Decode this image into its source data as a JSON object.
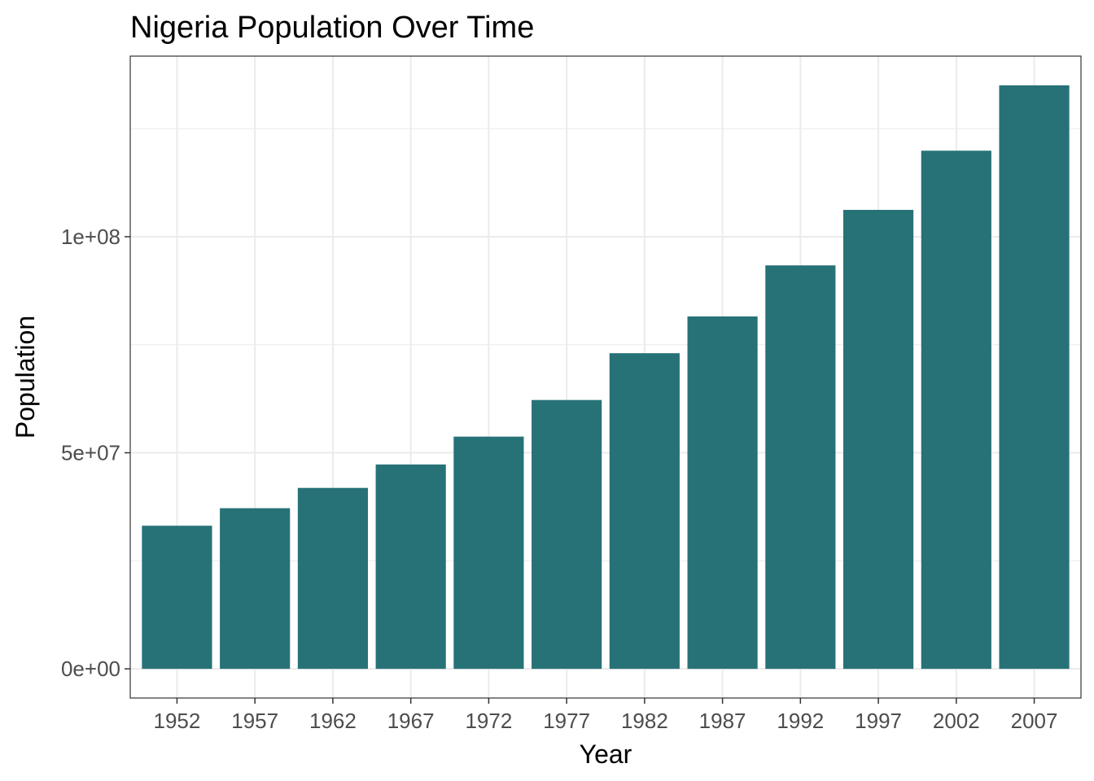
{
  "chart_data": {
    "type": "bar",
    "title": "Nigeria Population Over Time",
    "xlabel": "Year",
    "ylabel": "Population",
    "categories": [
      "1952",
      "1957",
      "1962",
      "1967",
      "1972",
      "1977",
      "1982",
      "1987",
      "1992",
      "1997",
      "2002",
      "2007"
    ],
    "series": [
      {
        "values": [
          33119096,
          37173340,
          41871351,
          47287752,
          53740085,
          62209173,
          73039376,
          81551520,
          93364244,
          106207839,
          119901274,
          135031164
        ]
      }
    ],
    "ylim": [
      -6751558,
      141782722
    ],
    "y_ticks": [
      {
        "value": 0,
        "label": "0e+00"
      },
      {
        "value": 50000000,
        "label": "5e+07"
      },
      {
        "value": 100000000,
        "label": "1e+08"
      }
    ],
    "y_minor_ticks": [
      25000000,
      75000000,
      125000000
    ],
    "grid": true,
    "legend": "none",
    "colors": {
      "bar": "#277277",
      "grid": "#ebebeb",
      "panel_border": "#333333",
      "tick": "#333333"
    }
  }
}
